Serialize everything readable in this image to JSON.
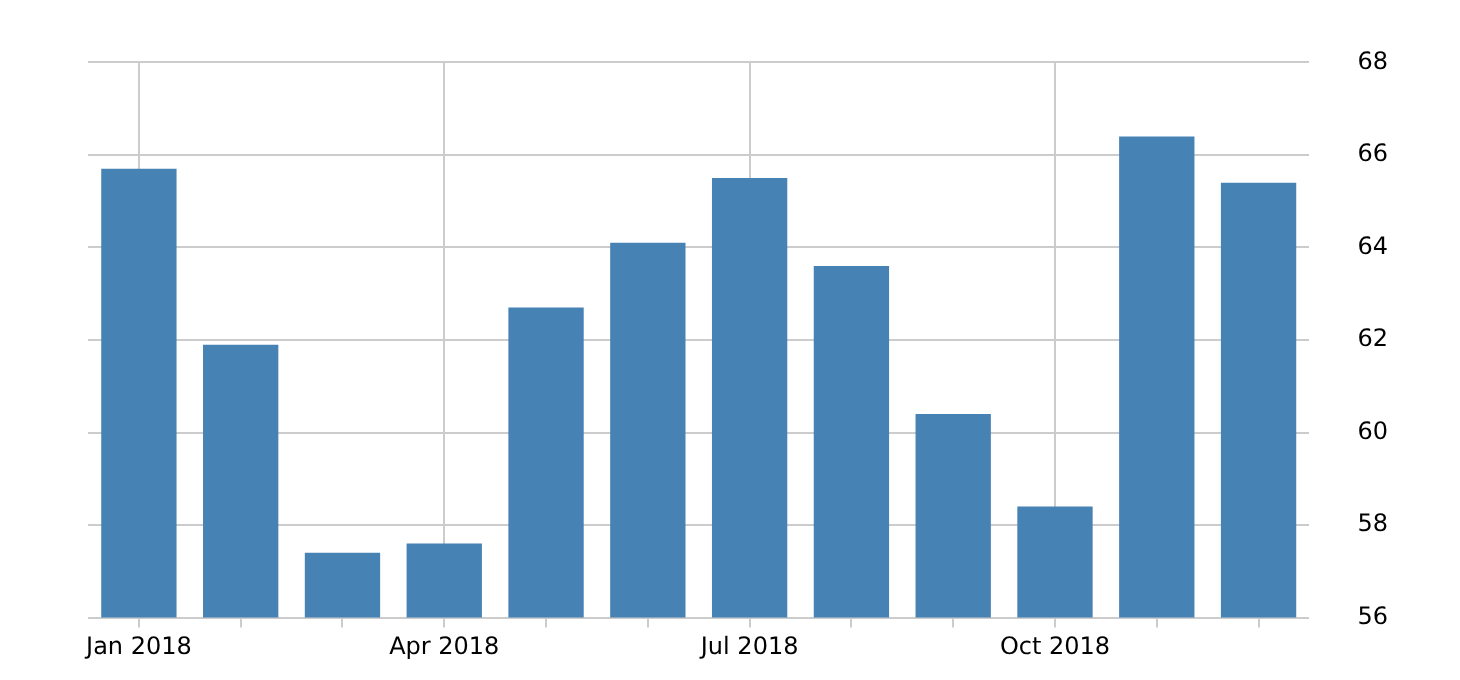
{
  "chart_data": {
    "type": "bar",
    "categories": [
      "Jan 2018",
      null,
      null,
      "Apr 2018",
      null,
      null,
      "Jul 2018",
      null,
      null,
      "Oct 2018",
      null,
      null
    ],
    "values": [
      65.7,
      61.9,
      57.4,
      57.6,
      62.7,
      64.1,
      65.5,
      63.6,
      60.4,
      58.4,
      66.4,
      65.4
    ],
    "color": "#4682b4",
    "ylim": [
      56,
      68
    ],
    "yticks": [
      56,
      58,
      60,
      62,
      64,
      66,
      68
    ],
    "grid": true
  }
}
